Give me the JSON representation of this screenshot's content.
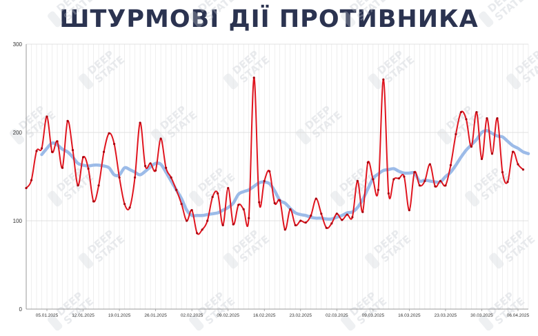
{
  "title": "ШТУРМОВІ ДІЇ ПРОТИВНИКА",
  "watermark": {
    "line1": "DEEP",
    "line2": "STATE"
  },
  "chart_data": {
    "type": "line",
    "title": "ШТУРМОВІ ДІЇ ПРОТИВНИКА",
    "xlabel": "",
    "ylabel": "",
    "ylim": [
      0,
      300
    ],
    "y_ticks": [
      0,
      100,
      200,
      300
    ],
    "x_range": [
      "2025-01-01",
      "2025-04-08"
    ],
    "x_tick_labels": [
      "05.01.2025",
      "12.01.2025",
      "19.01.2025",
      "26.01.2025",
      "02.02.2025",
      "09.02.2025",
      "16.02.2025",
      "23.02.2025",
      "02.03.2025",
      "09.03.2025",
      "16.03.2025",
      "23.03.2025",
      "30.03.2025",
      "06.04.2025"
    ],
    "grid": "vertical daily lines, horizontal lines at y ticks",
    "legend": "none",
    "colors": {
      "daily": "#e0141e",
      "average": "#9cbbe8",
      "title": "#2b3350"
    },
    "series": [
      {
        "type": "daily",
        "start": "2025-01-01",
        "values": [
          137,
          146,
          179,
          182,
          218,
          178,
          190,
          160,
          213,
          180,
          140,
          172,
          159,
          122,
          140,
          178,
          199,
          187,
          149,
          119,
          115,
          149,
          211,
          162,
          165,
          157,
          193,
          160,
          149,
          135,
          119,
          100,
          112,
          86,
          90,
          100,
          127,
          131,
          95,
          137,
          96,
          118,
          113,
          103,
          262,
          121,
          145,
          156,
          120,
          123,
          90,
          113,
          95,
          100,
          98,
          106,
          125,
          108,
          92,
          97,
          108,
          101,
          107,
          104,
          145,
          110,
          166,
          147,
          135,
          260,
          131,
          147,
          148,
          150,
          112,
          155,
          140,
          145,
          164,
          139,
          145,
          140,
          163,
          198,
          223,
          215,
          184,
          223,
          170,
          216,
          176,
          216,
          155,
          144,
          178,
          164,
          158
        ]
      },
      {
        "type": "average",
        "start": "2025-01-04",
        "values": [
          175,
          182,
          188,
          186,
          181,
          178,
          172,
          165,
          163,
          162,
          163,
          163,
          162,
          160,
          152,
          152,
          160,
          158,
          155,
          152,
          156,
          161,
          165,
          164,
          155,
          145,
          135,
          125,
          112,
          106,
          106,
          106,
          107,
          108,
          109,
          112,
          115,
          120,
          130,
          133,
          135,
          139,
          143,
          144,
          142,
          134,
          123,
          120,
          114,
          109,
          107,
          106,
          104,
          103,
          103,
          102,
          102,
          104,
          106,
          109,
          110,
          115,
          124,
          136,
          148,
          153,
          157,
          158,
          159,
          156,
          154,
          154,
          154,
          145,
          146,
          145,
          144,
          144,
          150,
          155,
          163,
          172,
          180,
          186,
          192,
          200,
          202,
          199,
          196,
          195,
          190,
          185,
          182,
          178,
          176
        ]
      }
    ]
  }
}
